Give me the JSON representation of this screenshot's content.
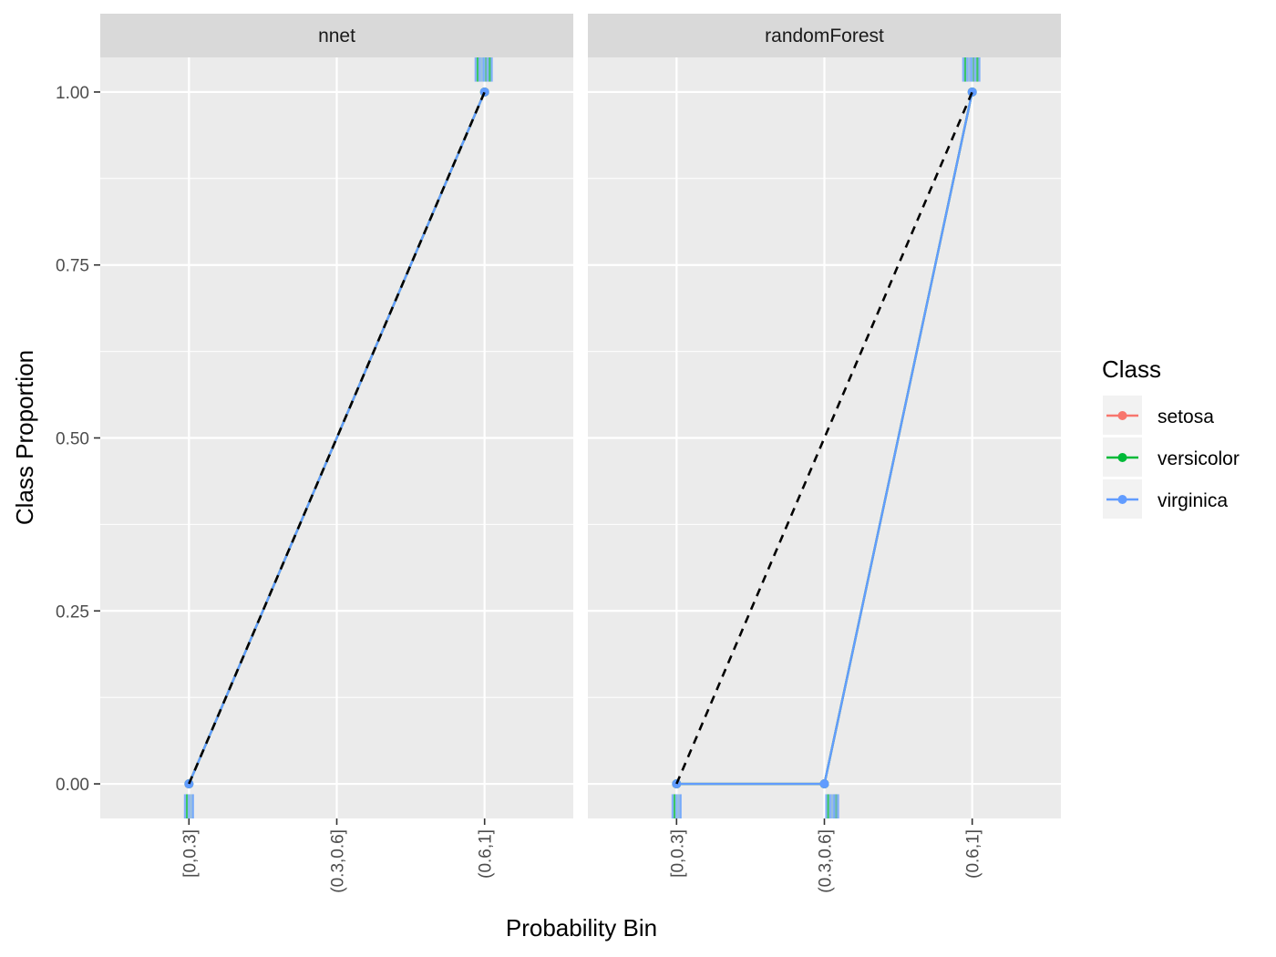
{
  "chart_data": {
    "type": "line",
    "xlabel": "Probability Bin",
    "ylabel": "Class Proportion",
    "categories": [
      "[0,0.3]",
      "(0.3,0.6]",
      "(0.6,1]"
    ],
    "ylim": [
      -0.05,
      1.05
    ],
    "yticks": [
      0.0,
      0.25,
      0.5,
      0.75,
      1.0
    ],
    "ytick_labels": [
      "0.00",
      "0.25",
      "0.50",
      "0.75",
      "1.00"
    ],
    "grid": true,
    "legend": {
      "title": "Class",
      "position": "right",
      "entries": [
        {
          "name": "setosa",
          "color": "#F8766D"
        },
        {
          "name": "versicolor",
          "color": "#00BA38"
        },
        {
          "name": "virginica",
          "color": "#619CFF"
        }
      ]
    },
    "reference_line": {
      "style": "dashed",
      "color": "#000000",
      "values": [
        0,
        0.5,
        1
      ]
    },
    "panels": [
      {
        "title": "nnet",
        "series": [
          {
            "name": "setosa",
            "color": "#F8766D",
            "x": [
              "[0,0.3]",
              "(0.6,1]"
            ],
            "values": [
              0,
              1
            ]
          },
          {
            "name": "versicolor",
            "color": "#00BA38",
            "x": [
              "[0,0.3]",
              "(0.6,1]"
            ],
            "values": [
              0,
              1
            ]
          },
          {
            "name": "virginica",
            "color": "#619CFF",
            "x": [
              "[0,0.3]",
              "(0.6,1]"
            ],
            "values": [
              0,
              1
            ]
          }
        ],
        "reference_x": [
          "[0,0.3]",
          "(0.6,1]"
        ],
        "reference_values": [
          0,
          1
        ],
        "rug_bottom": [
          {
            "bin": "[0,0.3]",
            "start": 0.0,
            "end": 0.2
          }
        ],
        "rug_top": [
          {
            "bin": "(0.6,1]",
            "start": 0.95,
            "end": 1.03
          }
        ]
      },
      {
        "title": "randomForest",
        "series": [
          {
            "name": "setosa",
            "color": "#F8766D",
            "x": [
              "[0,0.3]",
              "(0.3,0.6]",
              "(0.6,1]"
            ],
            "values": [
              0,
              0,
              1
            ]
          },
          {
            "name": "versicolor",
            "color": "#00BA38",
            "x": [
              "[0,0.3]",
              "(0.3,0.6]",
              "(0.6,1]"
            ],
            "values": [
              0,
              0,
              1
            ]
          },
          {
            "name": "virginica",
            "color": "#619CFF",
            "x": [
              "[0,0.3]",
              "(0.3,0.6]",
              "(0.6,1]"
            ],
            "values": [
              0,
              0,
              1
            ]
          }
        ],
        "reference_x": [
          "[0,0.3]",
          "(0.6,1]"
        ],
        "reference_values": [
          0,
          1
        ],
        "rug_bottom": [
          {
            "bin": "[0,0.3]",
            "start": 0.0,
            "end": 0.2
          },
          {
            "bin": "(0.3,0.6]",
            "start": 0.98,
            "end": 1.04
          }
        ],
        "rug_top": [
          {
            "bin": "(0.6,1]",
            "start": 0.97,
            "end": 1.03
          }
        ]
      }
    ]
  }
}
